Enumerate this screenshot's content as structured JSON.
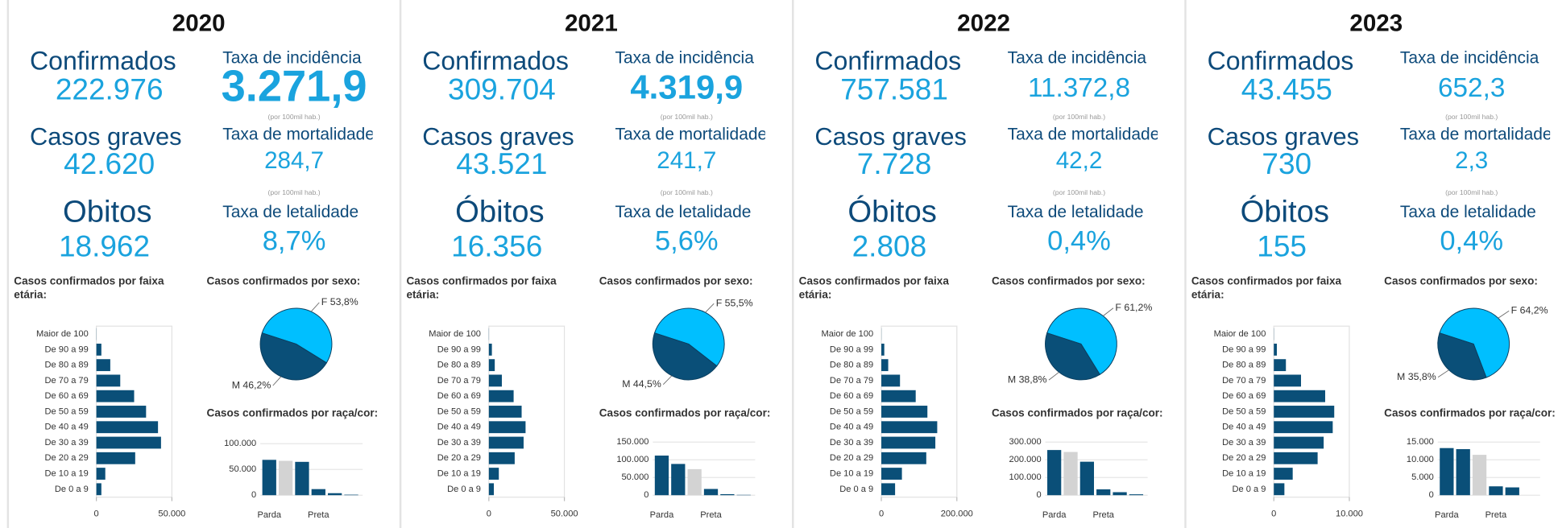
{
  "panels": [
    {
      "year": "2020",
      "stats": [
        {
          "label": "Confirmados",
          "value": "222.976"
        },
        {
          "label": "Casos graves",
          "value": "42.620"
        },
        {
          "label": "Obitos",
          "value": "18.962"
        },
        {
          "label": "Taxa de incidência",
          "value": "3.271,9",
          "note": "(por 100mil hab.)"
        },
        {
          "label": "Taxa de mortalidade",
          "value": "284,7",
          "note": "(por 100mil hab.)"
        },
        {
          "label": "Taxa de letalidade",
          "value": "8,7%"
        }
      ],
      "age_chart": {
        "type": "bar",
        "title": "Casos confirmados por faixa etária:",
        "categories": [
          "Maior de 100",
          "De 90 a 99",
          "De 80 a 89",
          "De 70 a 79",
          "De 60 a 69",
          "De 50 a 59",
          "De 40 a 49",
          "De 30 a 39",
          "De 20 a 29",
          "De 10 a 19",
          "De 0 a 9"
        ],
        "values": [
          100,
          3300,
          9200,
          15800,
          25000,
          32900,
          40800,
          42800,
          25700,
          5900,
          3300
        ],
        "color": "#0a4f78",
        "xlim": [
          0,
          50000
        ],
        "xticks": [
          0,
          {
            "value": 50000,
            "label": "50.000"
          }
        ]
      },
      "sex_chart": {
        "type": "pie",
        "title": "Casos confirmados por sexo:",
        "values": [
          53.8,
          46.2
        ],
        "value_labels": [
          "F 53,8%",
          "M 46,2%"
        ],
        "colors": [
          "#00bfff",
          "#0a4f78"
        ]
      },
      "race_chart": {
        "type": "bar",
        "title": "Casos confirmados por raça/cor:",
        "categories": [
          "Parda",
          null,
          null,
          "Preta",
          null,
          null
        ],
        "values": [
          68600,
          66700,
          64700,
          11800,
          3900,
          1000
        ],
        "colors": [
          "#0a4f78",
          "#d3d3d3",
          "#0a4f78",
          "#0a4f78",
          "#0a4f78",
          "#0a4f78"
        ],
        "ylim": [
          0,
          110000
        ],
        "yticks": [
          0,
          {
            "value": 50000,
            "label": "50.000"
          },
          {
            "value": 100000,
            "label": "100.000"
          }
        ]
      }
    },
    {
      "year": "2021",
      "stats": [
        {
          "label": "Confirmados",
          "value": "309.704"
        },
        {
          "label": "Casos graves",
          "value": "43.521"
        },
        {
          "label": "Óbitos",
          "value": "16.356"
        },
        {
          "label": "Taxa de incidência",
          "value": "4.319,9",
          "note": "(por 100mil hab.)"
        },
        {
          "label": "Taxa de mortalidade",
          "value": "241,7",
          "note": "(por 100mil hab.)"
        },
        {
          "label": "Taxa de letalidade",
          "value": "5,6%"
        }
      ],
      "age_chart": {
        "type": "bar",
        "title": "Casos confirmados por faixa etária:",
        "categories": [
          "Maior de 100",
          "De 90 a 99",
          "De 80 a 89",
          "De 70 a 79",
          "De 60 a 69",
          "De 50 a 59",
          "De 40 a 49",
          "De 30 a 39",
          "De 20 a 29",
          "De 10 a 19",
          "De 0 a 9"
        ],
        "values": [
          100,
          2000,
          3900,
          8600,
          16400,
          21700,
          24300,
          23000,
          17100,
          6600,
          3300
        ],
        "color": "#0a4f78",
        "xlim": [
          0,
          50000
        ],
        "xticks": [
          0,
          {
            "value": 50000,
            "label": "50.000"
          }
        ]
      },
      "sex_chart": {
        "type": "pie",
        "title": "Casos confirmados por sexo:",
        "values": [
          55.5,
          44.5
        ],
        "value_labels": [
          "F 55,5%",
          "M 44,5%"
        ],
        "colors": [
          "#00bfff",
          "#0a4f78"
        ]
      },
      "race_chart": {
        "type": "bar",
        "title": "Casos confirmados por raça/cor:",
        "categories": [
          "Parda",
          null,
          null,
          "Preta",
          null,
          null
        ],
        "values": [
          111800,
          88200,
          73500,
          17600,
          2900,
          1000
        ],
        "colors": [
          "#0a4f78",
          "#0a4f78",
          "#d3d3d3",
          "#0a4f78",
          "#0a4f78",
          "#0a4f78"
        ],
        "ylim": [
          0,
          160000
        ],
        "yticks": [
          0,
          {
            "value": 50000,
            "label": "50.000"
          },
          {
            "value": 100000,
            "label": "100.000"
          },
          {
            "value": 150000,
            "label": "150.000"
          }
        ]
      }
    },
    {
      "year": "2022",
      "stats": [
        {
          "label": "Confirmados",
          "value": "757.581"
        },
        {
          "label": "Casos graves",
          "value": "7.728"
        },
        {
          "label": "Óbitos",
          "value": "2.808"
        },
        {
          "label": "Taxa de incidência",
          "value": "11.372,8",
          "note": "(por 100mil hab.)"
        },
        {
          "label": "Taxa de mortalidade",
          "value": "42,2",
          "note": "(por 100mil hab.)"
        },
        {
          "label": "Taxa de letalidade",
          "value": "0,4%"
        }
      ],
      "age_chart": {
        "type": "bar",
        "title": "Casos confirmados por faixa etária:",
        "categories": [
          "Maior de 100",
          "De 90 a 99",
          "De 80 a 89",
          "De 70 a 79",
          "De 60 a 69",
          "De 50 a 59",
          "De 40 a 49",
          "De 30 a 39",
          "De 20 a 29",
          "De 10 a 19",
          "De 0 a 9"
        ],
        "values": [
          300,
          7800,
          18200,
          49400,
          91000,
          122000,
          148000,
          143000,
          119000,
          54500,
          36400
        ],
        "color": "#0a4f78",
        "xlim": [
          0,
          200000
        ],
        "xticks": [
          0,
          {
            "value": 200000,
            "label": "200.000"
          }
        ]
      },
      "sex_chart": {
        "type": "pie",
        "title": "Casos confirmados por sexo:",
        "values": [
          61.2,
          38.8
        ],
        "value_labels": [
          "F 61,2%",
          "M 38,8%"
        ],
        "colors": [
          "#00bfff",
          "#0a4f78"
        ]
      },
      "race_chart": {
        "type": "bar",
        "title": "Casos confirmados por raça/cor:",
        "categories": [
          "Parda",
          null,
          null,
          "Preta",
          null,
          null
        ],
        "values": [
          255000,
          244000,
          189000,
          33000,
          17000,
          5000
        ],
        "colors": [
          "#0a4f78",
          "#d3d3d3",
          "#0a4f78",
          "#0a4f78",
          "#0a4f78",
          "#0a4f78"
        ],
        "ylim": [
          0,
          320000
        ],
        "yticks": [
          0,
          {
            "value": 100000,
            "label": "100.000"
          },
          {
            "value": 200000,
            "label": "200.000"
          },
          {
            "value": 300000,
            "label": "300.000"
          }
        ]
      }
    },
    {
      "year": "2023",
      "stats": [
        {
          "label": "Confirmados",
          "value": "43.455"
        },
        {
          "label": "Casos graves",
          "value": "730"
        },
        {
          "label": "Óbitos",
          "value": "155"
        },
        {
          "label": "Taxa de incidência",
          "value": "652,3",
          "note": "(por 100mil hab.)"
        },
        {
          "label": "Taxa de mortalidade",
          "value": "2,3",
          "note": "(por 100mil hab.)"
        },
        {
          "label": "Taxa de letalidade",
          "value": "0,4%"
        }
      ],
      "age_chart": {
        "type": "bar",
        "title": "Casos confirmados por faixa etária:",
        "categories": [
          "Maior de 100",
          "De 90 a 99",
          "De 80 a 89",
          "De 70 a 79",
          "De 60 a 69",
          "De 50 a 59",
          "De 40 a 49",
          "De 30 a 39",
          "De 20 a 29",
          "De 10 a 19",
          "De 0 a 9"
        ],
        "values": [
          20,
          400,
          1600,
          3600,
          6800,
          8000,
          7800,
          6600,
          5800,
          2500,
          1400
        ],
        "color": "#0a4f78",
        "xlim": [
          0,
          10000
        ],
        "xticks": [
          0,
          {
            "value": 10000,
            "label": "10.000"
          }
        ]
      },
      "sex_chart": {
        "type": "pie",
        "title": "Casos confirmados por sexo:",
        "values": [
          64.2,
          35.8
        ],
        "value_labels": [
          "F 64,2%",
          "M 35,8%"
        ],
        "colors": [
          "#00bfff",
          "#0a4f78"
        ]
      },
      "race_chart": {
        "type": "bar",
        "title": "Casos confirmados por raça/cor:",
        "categories": [
          "Parda",
          null,
          null,
          "Preta",
          null
        ],
        "values": [
          13300,
          13000,
          11400,
          2500,
          2200
        ],
        "colors": [
          "#0a4f78",
          "#0a4f78",
          "#d3d3d3",
          "#0a4f78",
          "#0a4f78"
        ],
        "ylim": [
          0,
          16000
        ],
        "yticks": [
          0,
          {
            "value": 5000,
            "label": "5.000"
          },
          {
            "value": 10000,
            "label": "10.000"
          },
          {
            "value": 15000,
            "label": "15.000"
          }
        ]
      }
    }
  ]
}
